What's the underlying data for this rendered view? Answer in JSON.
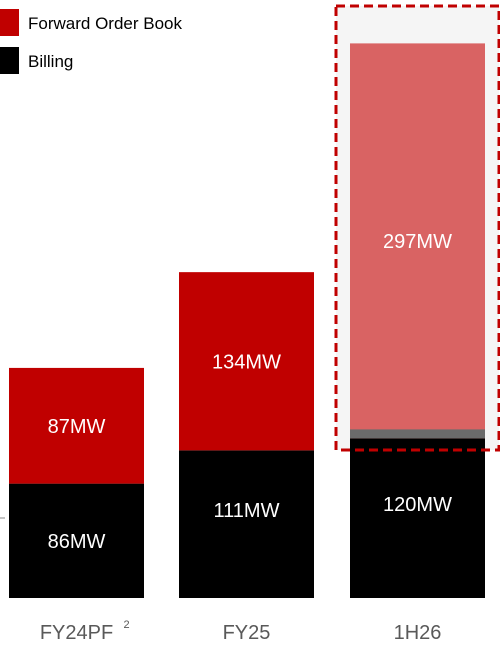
{
  "chart_data": {
    "type": "bar",
    "stacked": true,
    "categories": [
      "FY24PF",
      "FY25",
      "1H26"
    ],
    "category_superscripts": [
      "2",
      "",
      ""
    ],
    "series": [
      {
        "name": "Billing",
        "values": [
          86,
          111,
          120
        ],
        "labels": [
          "86MW",
          "111MW",
          "120MW"
        ],
        "color": "#000000"
      },
      {
        "name": "Forward Order Book",
        "values": [
          87,
          134,
          297
        ],
        "labels": [
          "87MW",
          "134MW",
          "297MW"
        ],
        "color": "#c00000"
      }
    ],
    "highlight": {
      "category": "1H26",
      "border_color": "#c00000",
      "border_style": "dashed",
      "fill_color": "#d96363",
      "background": "#f5f5f5"
    },
    "legend": {
      "placement": "top-left"
    },
    "grid": false,
    "title": "",
    "xlabel": "",
    "ylabel": ""
  }
}
